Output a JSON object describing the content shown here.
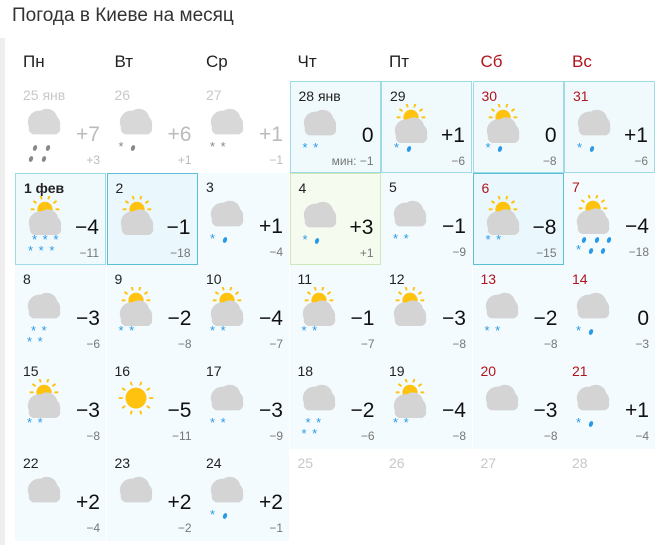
{
  "title": "Погода в Киеве на месяц",
  "weekdays": [
    {
      "label": "Пн",
      "weekend": false
    },
    {
      "label": "Вт",
      "weekend": false
    },
    {
      "label": "Ср",
      "weekend": false
    },
    {
      "label": "Чт",
      "weekend": false
    },
    {
      "label": "Пт",
      "weekend": false
    },
    {
      "label": "Сб",
      "weekend": true
    },
    {
      "label": "Вс",
      "weekend": true
    }
  ],
  "colors": {
    "weekend": "#b0141d",
    "sun": "#ffc20e",
    "cloud": "#d4d4d4",
    "snow": "#2b9ae6"
  },
  "days": [
    {
      "date": "25 янв",
      "state": "past",
      "icon": "cloud",
      "precip": [
        "rr",
        "rr"
      ],
      "max": "+7",
      "min": "+3"
    },
    {
      "date": "26",
      "state": "past",
      "icon": "cloud",
      "precip": [
        "sr"
      ],
      "max": "+6",
      "min": "+1"
    },
    {
      "date": "27",
      "state": "past",
      "icon": "cloud",
      "precip": [
        "ss"
      ],
      "max": "+1",
      "min": "−1"
    },
    {
      "date": "28 янв",
      "state": "hl",
      "icon": "cloud",
      "precip": [
        "ss"
      ],
      "max": "0",
      "min": "мин: −1"
    },
    {
      "date": "29",
      "state": "hl",
      "icon": "suncloud",
      "precip": [
        "sr"
      ],
      "max": "+1",
      "min": "−6"
    },
    {
      "date": "30",
      "state": "hl",
      "icon": "suncloud",
      "precip": [
        "sr"
      ],
      "max": "0",
      "min": "−8"
    },
    {
      "date": "31",
      "state": "hl",
      "icon": "cloud",
      "precip": [
        "sr"
      ],
      "max": "+1",
      "min": "−6"
    },
    {
      "date": "1 фев",
      "state": "hl",
      "bold": true,
      "icon": "suncloud",
      "precip": [
        "sss",
        "sss"
      ],
      "max": "−4",
      "min": "−11"
    },
    {
      "date": "2",
      "state": "sel",
      "icon": "suncloud",
      "precip": [],
      "max": "−1",
      "min": "−18"
    },
    {
      "date": "3",
      "state": "",
      "icon": "cloud",
      "precip": [
        "sr"
      ],
      "max": "+1",
      "min": "−4"
    },
    {
      "date": "4",
      "state": "today",
      "icon": "cloud",
      "precip": [
        "sr"
      ],
      "max": "+3",
      "min": "+1"
    },
    {
      "date": "5",
      "state": "",
      "icon": "cloud",
      "precip": [
        "ss"
      ],
      "max": "−1",
      "min": "−9"
    },
    {
      "date": "6",
      "state": "sel",
      "icon": "suncloud",
      "precip": [
        "ss"
      ],
      "max": "−8",
      "min": "−15"
    },
    {
      "date": "7",
      "state": "",
      "icon": "suncloud",
      "precip": [
        "rrr",
        "srr"
      ],
      "max": "−4",
      "min": "−18"
    },
    {
      "date": "8",
      "state": "",
      "icon": "cloud",
      "precip": [
        "ss",
        "ss"
      ],
      "max": "−3",
      "min": "−6"
    },
    {
      "date": "9",
      "state": "",
      "icon": "suncloud",
      "precip": [
        "ss"
      ],
      "max": "−2",
      "min": "−8"
    },
    {
      "date": "10",
      "state": "",
      "icon": "suncloud",
      "precip": [
        "ss"
      ],
      "max": "−4",
      "min": "−7"
    },
    {
      "date": "11",
      "state": "",
      "icon": "suncloud",
      "precip": [
        "ss"
      ],
      "max": "−1",
      "min": "−7"
    },
    {
      "date": "12",
      "state": "",
      "icon": "suncloud",
      "precip": [],
      "max": "−3",
      "min": "−8"
    },
    {
      "date": "13",
      "state": "",
      "icon": "cloud",
      "precip": [
        "ss"
      ],
      "max": "−2",
      "min": "−8"
    },
    {
      "date": "14",
      "state": "",
      "icon": "cloud",
      "precip": [
        "sr"
      ],
      "max": "0",
      "min": "−3"
    },
    {
      "date": "15",
      "state": "",
      "icon": "suncloud",
      "precip": [
        "ss"
      ],
      "max": "−3",
      "min": "−8"
    },
    {
      "date": "16",
      "state": "",
      "icon": "sun",
      "precip": [],
      "max": "−5",
      "min": "−11"
    },
    {
      "date": "17",
      "state": "",
      "icon": "cloud",
      "precip": [
        "ss"
      ],
      "max": "−3",
      "min": "−9"
    },
    {
      "date": "18",
      "state": "",
      "icon": "cloud",
      "precip": [
        "ss",
        "ss"
      ],
      "max": "−2",
      "min": "−6"
    },
    {
      "date": "19",
      "state": "",
      "icon": "suncloud",
      "precip": [
        "ss"
      ],
      "max": "−4",
      "min": "−8"
    },
    {
      "date": "20",
      "state": "",
      "icon": "cloud",
      "precip": [],
      "max": "−3",
      "min": "−8"
    },
    {
      "date": "21",
      "state": "",
      "icon": "cloud",
      "precip": [
        "sr"
      ],
      "max": "+1",
      "min": "−4"
    },
    {
      "date": "22",
      "state": "",
      "icon": "cloud",
      "precip": [],
      "max": "+2",
      "min": "−4"
    },
    {
      "date": "23",
      "state": "",
      "icon": "cloud",
      "precip": [],
      "max": "+2",
      "min": "−2"
    },
    {
      "date": "24",
      "state": "",
      "icon": "cloud",
      "precip": [
        "sr"
      ],
      "max": "+2",
      "min": "−1"
    },
    {
      "date": "25",
      "state": "future-empty",
      "icon": "",
      "precip": []
    },
    {
      "date": "26",
      "state": "future-empty",
      "icon": "",
      "precip": []
    },
    {
      "date": "27",
      "state": "future-empty",
      "icon": "",
      "precip": []
    },
    {
      "date": "28",
      "state": "future-empty",
      "icon": "",
      "precip": []
    }
  ]
}
